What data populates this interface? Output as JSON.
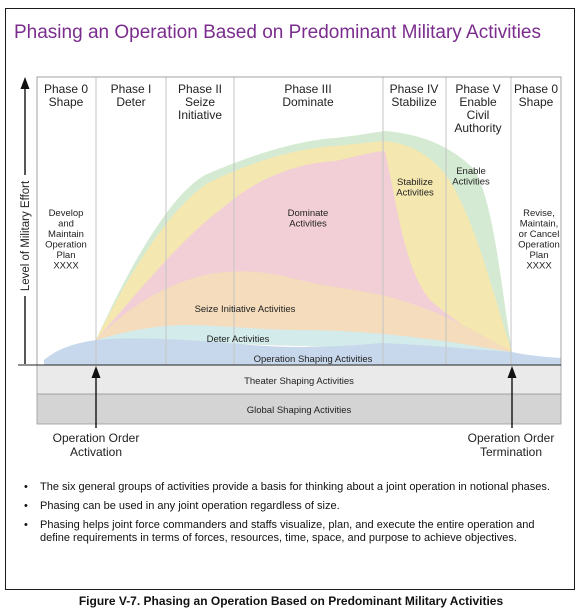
{
  "title": "Phasing an Operation Based on Predominant Military Activities",
  "y_axis_label": "Level of Military Effort",
  "phases": [
    {
      "lines": [
        "Phase 0",
        "Shape"
      ]
    },
    {
      "lines": [
        "Phase I",
        "Deter"
      ]
    },
    {
      "lines": [
        "Phase II",
        "Seize",
        "Initiative"
      ]
    },
    {
      "lines": [
        "Phase III",
        "Dominate"
      ]
    },
    {
      "lines": [
        "Phase IV",
        "Stabilize"
      ]
    },
    {
      "lines": [
        "Phase V",
        "Enable",
        "Civil",
        "Authority"
      ]
    },
    {
      "lines": [
        "Phase 0",
        "Shape"
      ]
    }
  ],
  "left_note": [
    "Develop",
    "and",
    "Maintain",
    "Operation",
    "Plan",
    "XXXX"
  ],
  "right_note": [
    "Revise,",
    "Maintain,",
    "or Cancel",
    "Operation",
    "Plan",
    "XXXX"
  ],
  "activities": {
    "dominate": [
      "Dominate",
      "Activities"
    ],
    "stabilize": [
      "Stabilize",
      "Activities"
    ],
    "enable": [
      "Enable",
      "Activities"
    ],
    "seize": "Seize Initiative Activities",
    "deter": "Deter Activities",
    "operation_shaping": "Operation Shaping Activities",
    "theater_shaping": "Theater Shaping Activities",
    "global_shaping": "Global Shaping Activities"
  },
  "markers": {
    "activation": [
      "Operation Order",
      "Activation"
    ],
    "termination": [
      "Operation Order",
      "Termination"
    ]
  },
  "bullets": [
    "The six general groups of activities provide a basis for thinking about a joint operation in notional phases.",
    "Phasing can be used in any joint operation regardless of size.",
    "Phasing helps joint force commanders and staffs visualize, plan, and execute the entire operation and define requirements in terms of forces, resources, time, space, and purpose to achieve objectives."
  ],
  "bullet_glyph": "•",
  "caption": "Figure V-7.  Phasing an Operation Based on Predominant Military Activities",
  "colors": {
    "title": "#7b2d8e",
    "enable": "#d5ead2",
    "stabilize": "#f4e7b0",
    "dominate": "#f2cfd6",
    "seize": "#f4dcbc",
    "deter": "#d3ebeb",
    "operation_shaping": "#c8d8ec",
    "theater_shaping": "#eaeaea",
    "global_shaping": "#d4d4d4"
  }
}
